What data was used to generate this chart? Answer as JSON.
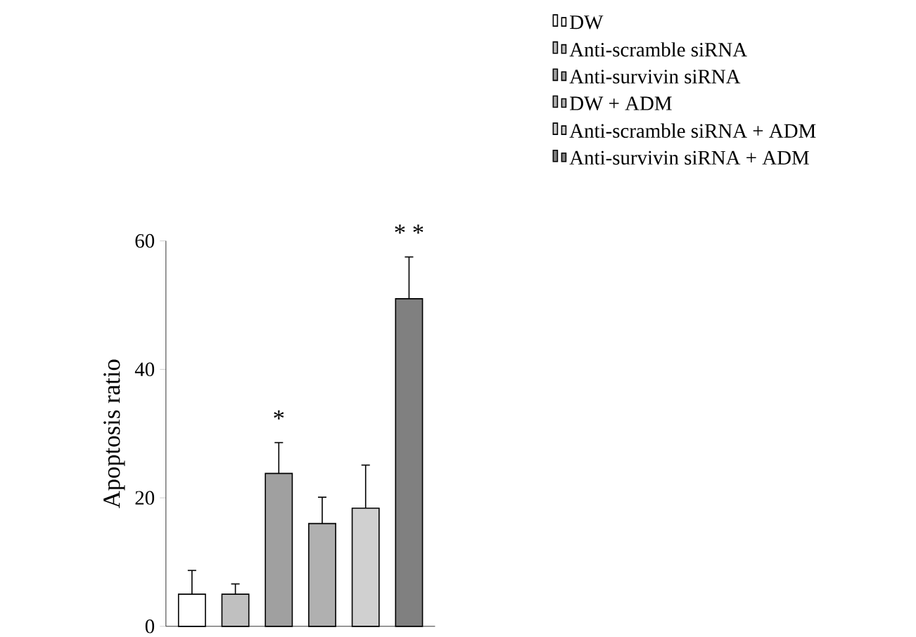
{
  "chart_data": {
    "type": "bar",
    "ylabel": "Apoptosis ratio",
    "categories": [
      null,
      null,
      null,
      null,
      null,
      null
    ],
    "series": [
      {
        "name": "DW",
        "color": "#ffffff",
        "values": [
          5.0,
          null,
          null,
          null,
          null,
          null
        ],
        "errors": [
          3.7,
          null,
          null,
          null,
          null,
          null
        ]
      },
      {
        "name": "Anti-scramble siRNA",
        "color": "#c0c0c0",
        "values": [
          null,
          5.0,
          null,
          null,
          null,
          null
        ],
        "errors": [
          null,
          1.6,
          null,
          null,
          null,
          null
        ]
      },
      {
        "name": "Anti-survivin siRNA",
        "color": "#a0a0a0",
        "values": [
          null,
          null,
          23.8,
          null,
          null,
          null
        ],
        "errors": [
          null,
          null,
          4.8,
          null,
          null,
          null
        ],
        "value_labels": [
          null,
          null,
          "*",
          null,
          null,
          null
        ]
      },
      {
        "name": "DW + ADM",
        "color": "#b0b0b0",
        "values": [
          null,
          null,
          null,
          16.0,
          null,
          null
        ],
        "errors": [
          null,
          null,
          null,
          4.1,
          null,
          null
        ]
      },
      {
        "name": "Anti-scramble siRNA + ADM",
        "color": "#d0d0d0",
        "values": [
          null,
          null,
          null,
          null,
          18.4,
          null
        ],
        "errors": [
          null,
          null,
          null,
          null,
          6.7,
          null
        ]
      },
      {
        "name": "Anti-survivin siRNA + ADM",
        "color": "#808080",
        "values": [
          null,
          null,
          null,
          null,
          null,
          51.0
        ],
        "errors": [
          null,
          null,
          null,
          null,
          null,
          6.5
        ],
        "value_labels": [
          null,
          null,
          null,
          null,
          null,
          "* *"
        ]
      }
    ],
    "ylim": [
      0,
      60
    ],
    "yticks": [
      0,
      20,
      40,
      60
    ],
    "legend": "top right"
  }
}
